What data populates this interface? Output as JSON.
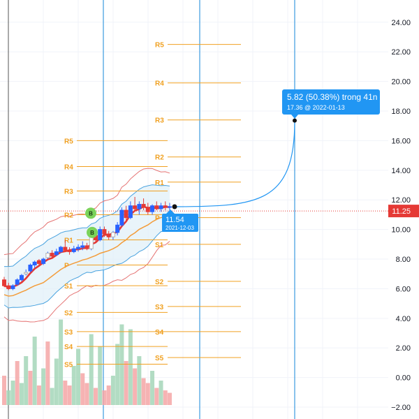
{
  "chart_data": {
    "type": "candlestick",
    "y_range": [
      -2.8,
      25.5
    ],
    "y_ticks": [
      "24.00",
      "22.00",
      "20.00",
      "18.00",
      "16.00",
      "14.00",
      "12.00",
      "10.00",
      "8.00",
      "6.00",
      "4.00",
      "2.00",
      "0.00",
      "−2.00"
    ],
    "last_price": {
      "value": 11.25,
      "label": "11.25"
    },
    "price_tag": {
      "value": 11.54,
      "label": "11.54",
      "date": "2021-12-03"
    },
    "projection": {
      "text": "5.82 (50.38%) trong 41n",
      "sub": "17.36 @ 2022-01-13",
      "target": 17.36
    },
    "pivots_prev": [
      {
        "label": "R5",
        "value": 16.0
      },
      {
        "label": "R4",
        "value": 14.25
      },
      {
        "label": "R3",
        "value": 12.6
      },
      {
        "label": "R2",
        "value": 11.0
      },
      {
        "label": "R1",
        "value": 9.3
      },
      {
        "label": "P",
        "value": 7.6
      },
      {
        "label": "S1",
        "value": 6.2
      },
      {
        "label": "S2",
        "value": 4.4
      },
      {
        "label": "S3",
        "value": 3.1
      },
      {
        "label": "S4",
        "value": 2.1
      },
      {
        "label": "S5",
        "value": 0.9
      }
    ],
    "pivots_curr": [
      {
        "label": "R5",
        "value": 22.5
      },
      {
        "label": "R4",
        "value": 19.9
      },
      {
        "label": "R3",
        "value": 17.4
      },
      {
        "label": "R2",
        "value": 14.9
      },
      {
        "label": "R1",
        "value": 13.2
      },
      {
        "label": "P",
        "value": 10.8
      },
      {
        "label": "S1",
        "value": 9.0
      },
      {
        "label": "S2",
        "value": 6.5
      },
      {
        "label": "S3",
        "value": 4.8
      },
      {
        "label": "S4",
        "value": 3.1
      },
      {
        "label": "S5",
        "value": 1.35
      }
    ],
    "buy_signals": [
      {
        "label": "B",
        "value": 11.1
      },
      {
        "label": "B",
        "value": 9.8
      }
    ],
    "candles": [
      [
        6.6,
        6.8,
        6.1,
        6.2
      ],
      [
        6.2,
        6.4,
        5.9,
        6.0
      ],
      [
        6.0,
        6.3,
        5.9,
        6.2
      ],
      [
        6.3,
        6.7,
        6.2,
        6.6
      ],
      [
        6.6,
        7.0,
        6.5,
        6.9
      ],
      [
        7.0,
        7.3,
        6.9,
        7.1
      ],
      [
        7.2,
        7.7,
        7.1,
        7.6
      ],
      [
        7.6,
        7.9,
        7.4,
        7.8
      ],
      [
        7.9,
        8.0,
        7.6,
        7.7
      ],
      [
        7.7,
        8.1,
        7.6,
        8.0
      ],
      [
        8.1,
        8.5,
        8.0,
        8.4
      ],
      [
        8.4,
        8.6,
        8.1,
        8.2
      ],
      [
        8.3,
        8.7,
        8.2,
        8.5
      ],
      [
        8.5,
        8.9,
        8.4,
        8.8
      ],
      [
        8.8,
        9.3,
        8.7,
        8.6
      ],
      [
        8.6,
        8.8,
        8.3,
        8.5
      ],
      [
        8.5,
        8.9,
        8.4,
        8.7
      ],
      [
        8.7,
        9.0,
        8.5,
        8.8
      ],
      [
        8.8,
        9.2,
        8.6,
        8.9
      ],
      [
        8.9,
        9.1,
        8.6,
        8.7
      ],
      [
        8.7,
        9.8,
        8.6,
        9.6
      ],
      [
        9.6,
        9.9,
        9.2,
        9.3
      ],
      [
        9.3,
        10.2,
        9.2,
        10.0
      ],
      [
        10.0,
        10.2,
        9.5,
        9.7
      ],
      [
        9.7,
        9.9,
        9.3,
        9.5
      ],
      [
        9.5,
        9.9,
        9.3,
        9.8
      ],
      [
        9.8,
        10.5,
        9.6,
        10.3
      ],
      [
        10.3,
        11.5,
        10.2,
        11.3
      ],
      [
        11.3,
        11.6,
        10.6,
        10.8
      ],
      [
        10.8,
        11.9,
        10.7,
        11.6
      ],
      [
        11.6,
        12.2,
        11.2,
        11.4
      ],
      [
        11.4,
        11.9,
        11.0,
        11.7
      ],
      [
        11.7,
        12.1,
        11.3,
        11.5
      ],
      [
        11.5,
        11.8,
        11.0,
        11.2
      ],
      [
        11.2,
        11.7,
        11.0,
        11.6
      ],
      [
        11.6,
        11.9,
        11.3,
        11.4
      ],
      [
        11.4,
        11.8,
        11.2,
        11.6
      ],
      [
        11.6,
        11.9,
        11.3,
        11.5
      ],
      [
        11.5,
        11.8,
        11.2,
        11.54
      ]
    ],
    "volumes": [
      [
        1.2,
        "down"
      ],
      [
        0.6,
        "up"
      ],
      [
        1.0,
        "up"
      ],
      [
        1.8,
        "down"
      ],
      [
        0.9,
        "up"
      ],
      [
        2.0,
        "up"
      ],
      [
        1.4,
        "down"
      ],
      [
        2.8,
        "up"
      ],
      [
        0.8,
        "down"
      ],
      [
        1.5,
        "up"
      ],
      [
        2.6,
        "down"
      ],
      [
        0.7,
        "up"
      ],
      [
        1.9,
        "up"
      ],
      [
        3.5,
        "up"
      ],
      [
        1.0,
        "down"
      ],
      [
        0.8,
        "down"
      ],
      [
        1.6,
        "up"
      ],
      [
        2.3,
        "up"
      ],
      [
        1.3,
        "down"
      ],
      [
        0.9,
        "down"
      ],
      [
        2.9,
        "up"
      ],
      [
        0.7,
        "down"
      ],
      [
        2.4,
        "up"
      ],
      [
        0.6,
        "down"
      ],
      [
        0.8,
        "down"
      ],
      [
        1.2,
        "up"
      ],
      [
        2.5,
        "up"
      ],
      [
        3.3,
        "up"
      ],
      [
        1.8,
        "down"
      ],
      [
        3.1,
        "up"
      ],
      [
        1.5,
        "down"
      ],
      [
        2.0,
        "up"
      ],
      [
        1.1,
        "down"
      ],
      [
        0.9,
        "down"
      ],
      [
        1.4,
        "up"
      ],
      [
        0.7,
        "down"
      ],
      [
        1.0,
        "up"
      ],
      [
        0.6,
        "down"
      ],
      [
        0.5,
        "down"
      ]
    ]
  },
  "colors": {
    "up": "#2962ff",
    "down": "#e53935",
    "up_hollow": "#b0b0b0",
    "vol_up": "#a5d6b9",
    "vol_down": "#f4a6a6",
    "pivot": "#f0a020",
    "ma_red": "#e53935",
    "ma_orange": "#f39c3a",
    "bb_outer": "#e57373",
    "bb_inner": "#4aa3df",
    "vline": "#3b9be0",
    "last_price": "#e53935",
    "projection": "#2196f3",
    "signal": "#7bd35a"
  }
}
